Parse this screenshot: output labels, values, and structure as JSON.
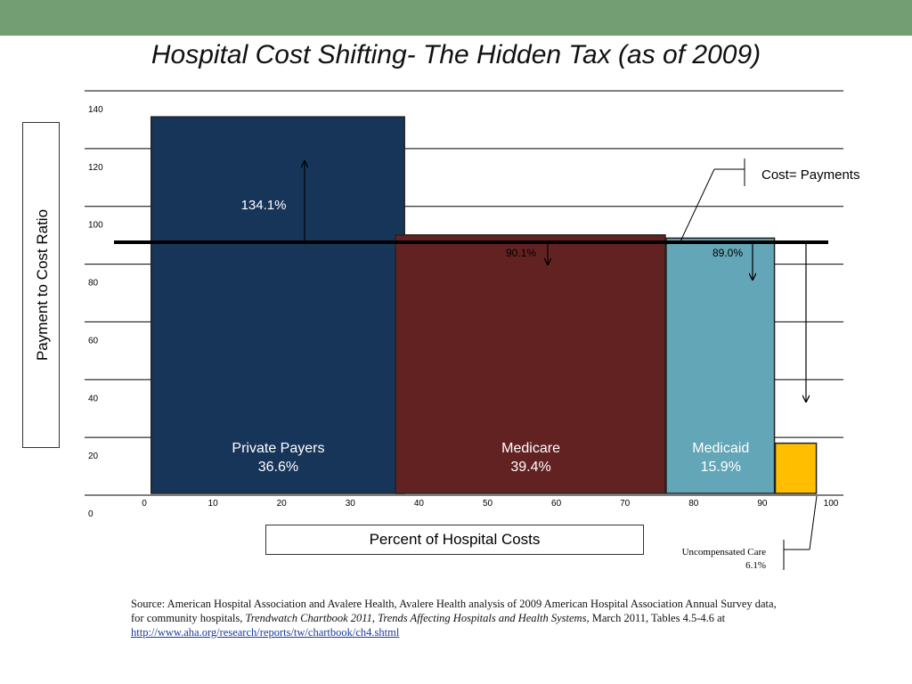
{
  "title": "Hospital Cost Shifting- The Hidden Tax (as of 2009)",
  "chart_data": {
    "type": "bar",
    "xlabel": "Percent of Hospital Costs",
    "ylabel": "Payment to Cost Ratio",
    "xlim": [
      0,
      100
    ],
    "ylim": [
      0,
      140
    ],
    "x_ticks": [
      0,
      10,
      20,
      30,
      40,
      50,
      60,
      70,
      80,
      90,
      100
    ],
    "y_ticks": [
      0,
      20,
      40,
      60,
      80,
      100,
      120,
      140
    ],
    "grid": true,
    "bars": [
      {
        "name": "Private Payers",
        "share_label": "36.6%",
        "x_start": 0,
        "width": 36.6,
        "ratio": 134.1,
        "ratio_label": "134.1%",
        "color": "#173559"
      },
      {
        "name": "Medicare",
        "share_label": "39.4%",
        "x_start": 36.6,
        "width": 39.4,
        "ratio": 90.1,
        "ratio_label": "90.1%",
        "color": "#632222"
      },
      {
        "name": "Medicaid",
        "share_label": "15.9%",
        "x_start": 76.0,
        "width": 15.9,
        "ratio": 89.0,
        "ratio_label": "89.0%",
        "color": "#63a6b7"
      },
      {
        "name": "Uncompensated Care",
        "share_label": "6.1%",
        "x_start": 91.9,
        "width": 6.1,
        "ratio": 18.0,
        "ratio_label": "",
        "color": "#ffbf00"
      }
    ],
    "reference_line": {
      "label": "Cost= Payments",
      "value": 100
    }
  },
  "source": {
    "prefix": "Source: American Hospital Association and Avalere Health, Avalere Health analysis of 2009 American Hospital Association Annual Survey data, for community hospitals, ",
    "italic": "Trendwatch Chartbook 2011, Trends Affecting Hospitals and Health Systems",
    "suffix": ", March 2011, Tables 4.5-4.6 at ",
    "link": "http://www.aha.org/research/reports/tw/chartbook/ch4.shtml"
  },
  "colors": {
    "header_bar": "#739e73",
    "grid": "#000000"
  }
}
